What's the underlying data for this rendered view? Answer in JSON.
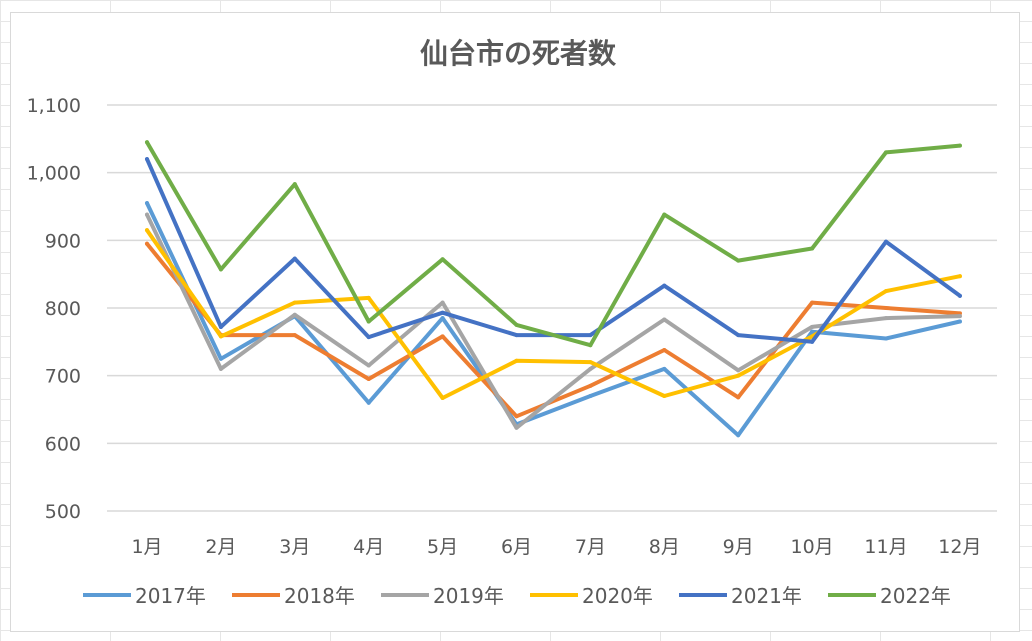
{
  "chart_data": {
    "type": "line",
    "title": "仙台市の死者数",
    "categories": [
      "1月",
      "2月",
      "3月",
      "4月",
      "5月",
      "6月",
      "7月",
      "8月",
      "9月",
      "10月",
      "11月",
      "12月"
    ],
    "y_ticks": [
      "500",
      "600",
      "700",
      "800",
      "900",
      "1,000",
      "1,100"
    ],
    "ylim": [
      500,
      1100
    ],
    "grid": true,
    "legend_position": "bottom",
    "series": [
      {
        "name": "2017年",
        "color": "#5b9bd5",
        "values": [
          955,
          725,
          788,
          660,
          785,
          628,
          670,
          710,
          612,
          765,
          755,
          780
        ]
      },
      {
        "name": "2018年",
        "color": "#ed7d31",
        "values": [
          895,
          760,
          760,
          695,
          758,
          640,
          685,
          738,
          668,
          808,
          800,
          792
        ]
      },
      {
        "name": "2019年",
        "color": "#a5a5a5",
        "values": [
          938,
          710,
          790,
          715,
          808,
          623,
          710,
          783,
          708,
          772,
          785,
          788
        ]
      },
      {
        "name": "2020年",
        "color": "#ffc000",
        "values": [
          915,
          758,
          808,
          815,
          667,
          722,
          720,
          670,
          700,
          758,
          825,
          847
        ]
      },
      {
        "name": "2021年",
        "color": "#4472c4",
        "values": [
          1020,
          772,
          873,
          757,
          793,
          760,
          760,
          833,
          760,
          750,
          898,
          818
        ]
      },
      {
        "name": "2022年",
        "color": "#70ad47",
        "values": [
          1045,
          857,
          983,
          780,
          872,
          775,
          745,
          938,
          870,
          888,
          1030,
          1040
        ]
      }
    ]
  }
}
